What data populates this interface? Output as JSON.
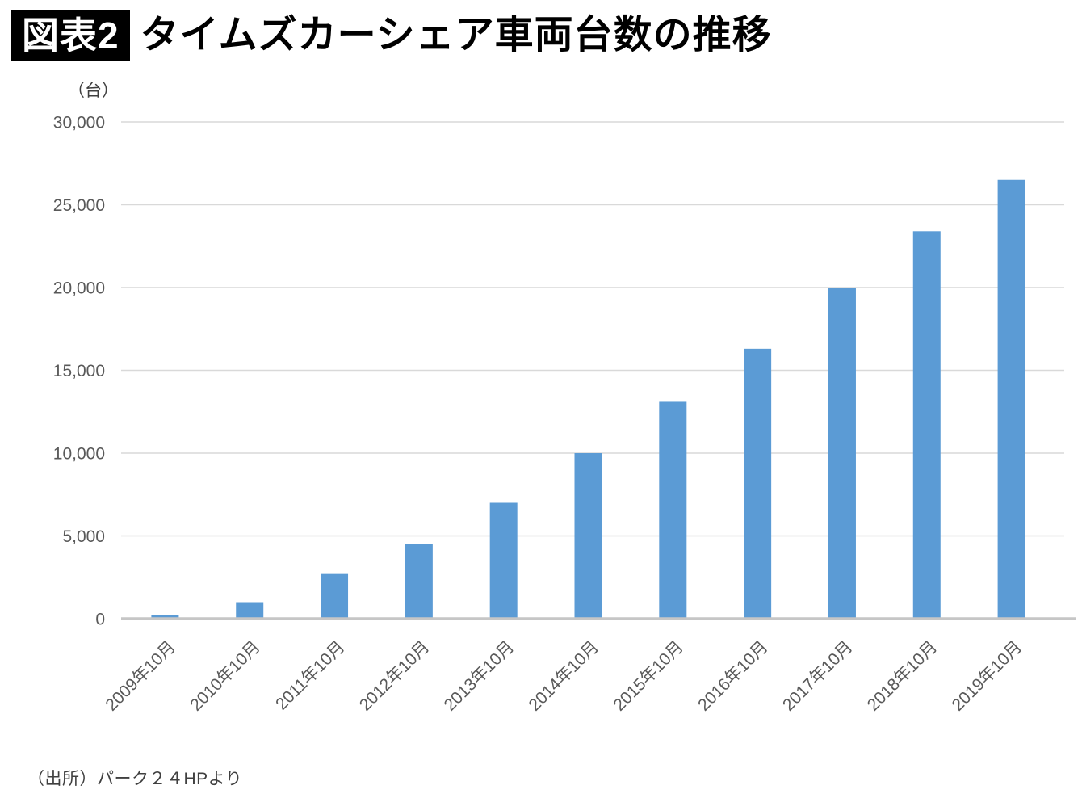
{
  "header": {
    "badge": "図表2",
    "title": "タイムズカーシェア車両台数の推移"
  },
  "chart_data": {
    "type": "bar",
    "title": "タイムズカーシェア車両台数の推移",
    "ylabel": "（台）",
    "xlabel": "",
    "categories": [
      "2009年10月",
      "2010年10月",
      "2011年10月",
      "2012年10月",
      "2013年10月",
      "2014年10月",
      "2015年10月",
      "2016年10月",
      "2017年10月",
      "2018年10月",
      "2019年10月"
    ],
    "values": [
      200,
      1000,
      2700,
      4500,
      7000,
      10000,
      13100,
      16300,
      20000,
      23400,
      26500
    ],
    "ylim": [
      0,
      30000
    ],
    "y_ticks": [
      0,
      5000,
      10000,
      15000,
      20000,
      25000,
      30000
    ],
    "y_tick_labels": [
      "0",
      "5,000",
      "10,000",
      "15,000",
      "20,000",
      "25,000",
      "30,000"
    ],
    "grid": true,
    "legend": "none",
    "bar_color": "#5B9BD5",
    "gridline_color": "#D9D9D9",
    "axis_line_color": "#C6C6C6",
    "tick_label_color": "#595959",
    "unit_label_color": "#404040"
  },
  "footer": {
    "source": "（出所）パーク２４HPより"
  }
}
